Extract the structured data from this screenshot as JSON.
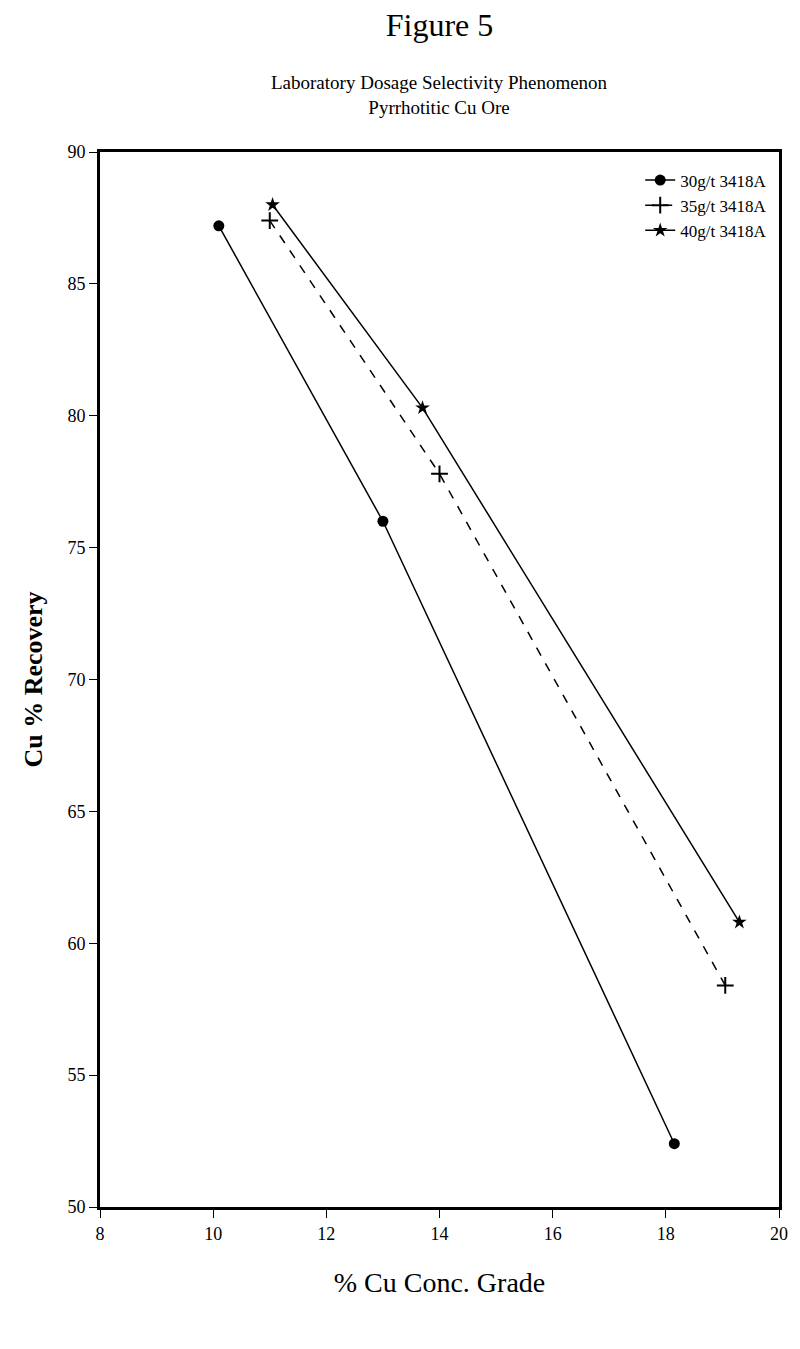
{
  "chart_data": {
    "type": "line",
    "title": "Figure 5",
    "subtitle": [
      "Laboratory Dosage Selectivity Phenomenon",
      "Pyrrhotitic Cu Ore"
    ],
    "x_label": "% Cu Conc. Grade",
    "y_label": "Cu % Recovery",
    "series": [
      {
        "name": "30g/t 3418A",
        "color": "#000000",
        "marker": "circle",
        "line_style": "solid",
        "x": [
          10.1,
          13.0,
          18.15
        ],
        "values": [
          87.2,
          76.0,
          52.4
        ]
      },
      {
        "name": "35g/t 3418A",
        "color": "#000000",
        "marker": "cross",
        "line_style": "dash",
        "x": [
          11.0,
          14.0,
          19.05
        ],
        "values": [
          87.4,
          77.8,
          58.4
        ]
      },
      {
        "name": "40g/t 3418A",
        "color": "#000000",
        "marker": "star",
        "line_style": "solid",
        "x": [
          11.05,
          13.7,
          19.3
        ],
        "values": [
          88.0,
          80.3,
          60.8
        ]
      }
    ],
    "xlim": [
      8,
      20
    ],
    "xticks": [
      8,
      10,
      12,
      14,
      16,
      18,
      20
    ],
    "ylim": [
      50,
      90
    ],
    "yticks": [
      50,
      55,
      60,
      65,
      70,
      75,
      80,
      85,
      90
    ],
    "grid": false,
    "legend": "top right"
  }
}
